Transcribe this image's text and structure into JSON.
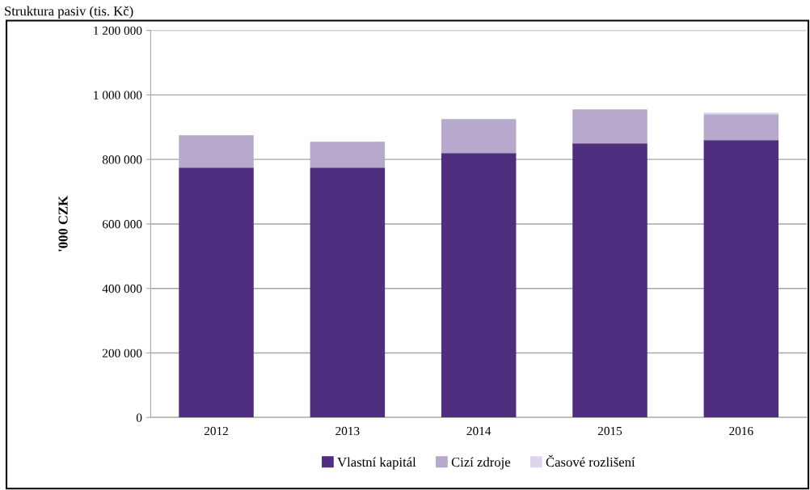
{
  "chart_data": {
    "type": "bar",
    "title": "Struktura pasiv (tis. Kč)",
    "ylabel": "'000 CZK",
    "stacked": true,
    "categories": [
      "2012",
      "2013",
      "2014",
      "2015",
      "2016"
    ],
    "series": [
      {
        "name": "Vlastní kapitál",
        "color": "#4f2d7f",
        "values": [
          775000,
          775000,
          820000,
          850000,
          860000
        ]
      },
      {
        "name": "Cizí zdroje",
        "color": "#b6a9cc",
        "values": [
          100000,
          80000,
          105000,
          105000,
          80000
        ]
      },
      {
        "name": "Časové rozlišení",
        "color": "#ddd6ea",
        "values": [
          0,
          0,
          0,
          0,
          5000
        ]
      }
    ],
    "ylim": [
      0,
      1200000
    ],
    "yticks": [
      {
        "value": 0,
        "label": "0"
      },
      {
        "value": 200000,
        "label": "200 000"
      },
      {
        "value": 400000,
        "label": "400 000"
      },
      {
        "value": 600000,
        "label": "600 000"
      },
      {
        "value": 800000,
        "label": "800 000"
      },
      {
        "value": 1000000,
        "label": "1 000 000"
      },
      {
        "value": 1200000,
        "label": "1 200 000"
      }
    ],
    "grid": "y",
    "legend": "bottom"
  }
}
